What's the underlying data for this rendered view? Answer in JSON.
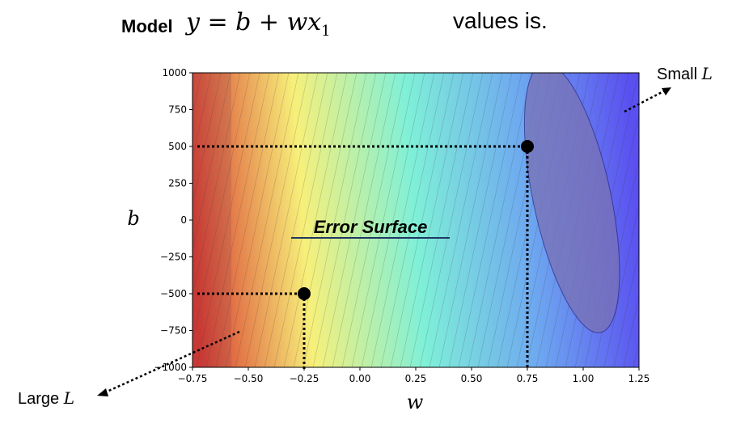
{
  "header": {
    "model_label": "Model",
    "model_equation": "y = b + wx",
    "model_equation_subscript": "1",
    "trailing_text": "values is."
  },
  "chart_data": {
    "type": "contour",
    "xlabel": "w",
    "ylabel": "b",
    "xlim": [
      -0.75,
      1.25
    ],
    "ylim": [
      -1000,
      1000
    ],
    "xticks": [
      "−0.75",
      "−0.50",
      "−0.25",
      "0.00",
      "0.25",
      "0.50",
      "0.75",
      "1.00",
      "1.25"
    ],
    "yticks": [
      "1000",
      "750",
      "500",
      "250",
      "0",
      "−250",
      "−500",
      "−750",
      "−1000"
    ],
    "xtick_values": [
      -0.75,
      -0.5,
      -0.25,
      0,
      0.25,
      0.5,
      0.75,
      1.0,
      1.25
    ],
    "ytick_values": [
      1000,
      750,
      500,
      250,
      0,
      -250,
      -500,
      -750,
      -1000
    ],
    "colormap": [
      "#d9382e",
      "#f7f07a",
      "#7ff0d8",
      "#6ea9f0",
      "#5a4ff0"
    ],
    "minimum": {
      "w": 0.95,
      "b": 150
    },
    "points": [
      {
        "w": 0.75,
        "b": 500
      },
      {
        "w": -0.25,
        "b": -500
      }
    ],
    "annotations": {
      "center": "Error Surface",
      "small": "Small",
      "large": "Large",
      "loss_symbol": "L"
    }
  }
}
